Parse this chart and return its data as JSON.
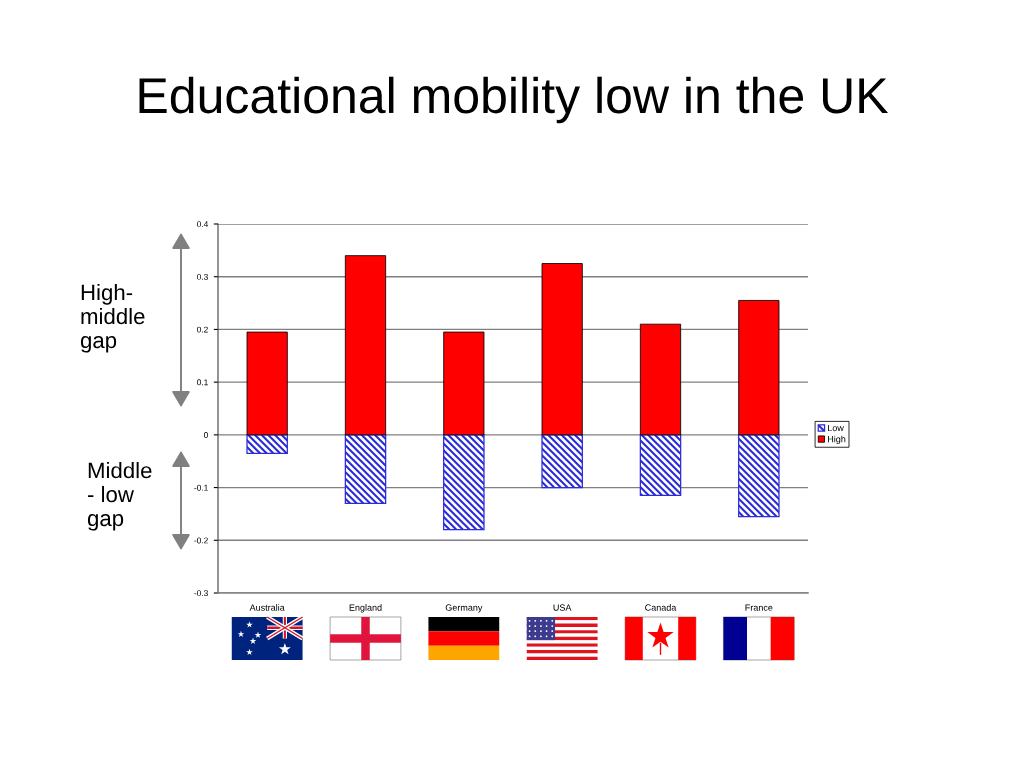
{
  "chart_data": {
    "type": "bar",
    "title": "Educational mobility low in the UK",
    "categories": [
      "Australia",
      "England",
      "Germany",
      "USA",
      "Canada",
      "France"
    ],
    "series": [
      {
        "name": "Low",
        "color": "#2b2bd9",
        "values": [
          -0.035,
          -0.13,
          -0.18,
          -0.1,
          -0.115,
          -0.155
        ]
      },
      {
        "name": "High",
        "color": "#ff0000",
        "values": [
          0.195,
          0.34,
          0.195,
          0.325,
          0.21,
          0.255
        ]
      }
    ],
    "stacked": true,
    "ylim": [
      -0.3,
      0.4
    ],
    "yticks": [
      -0.3,
      -0.2,
      -0.1,
      0,
      0.1,
      0.2,
      0.3,
      0.4
    ],
    "grid": "y",
    "legend": "right",
    "annotations": [
      "High-\nmiddle\ngap",
      "Middle\n- low\ngap"
    ]
  }
}
